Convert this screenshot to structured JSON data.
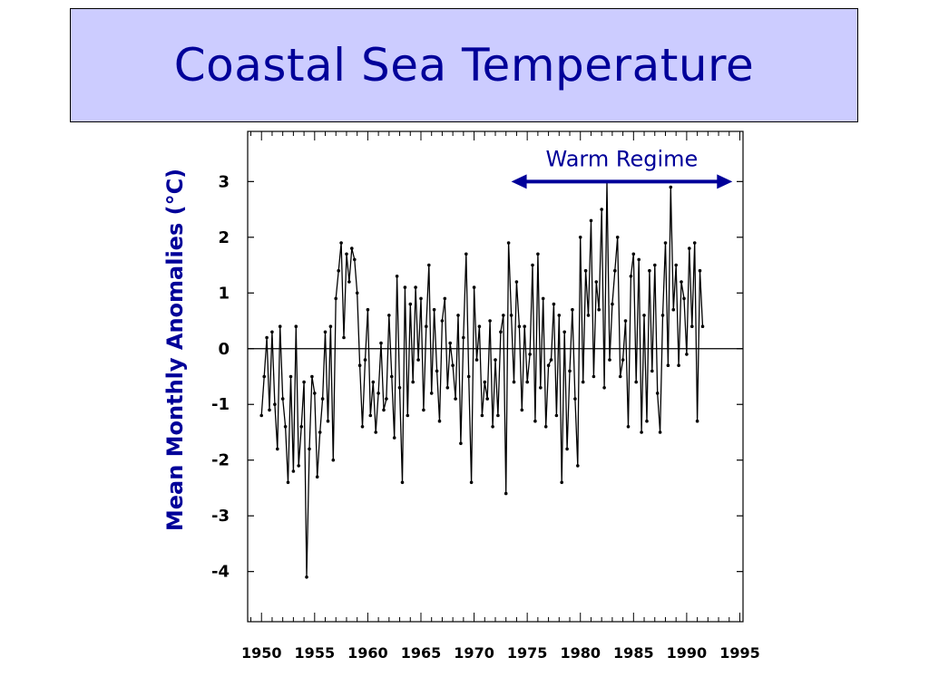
{
  "slide": {
    "title": "Coastal Sea Temperature"
  },
  "colors": {
    "title_background": "#ccccff",
    "title_text": "#000099",
    "series": "#000000",
    "annotation": "#000099"
  },
  "chart_data": {
    "type": "line",
    "title": "Coastal Sea Temperature",
    "xlabel": "",
    "ylabel": "Mean Monthly Anomalies (°C)",
    "xlim": [
      1948.7,
      1995.3
    ],
    "ylim": [
      -4.9,
      3.9
    ],
    "x_ticks": [
      1950,
      1955,
      1960,
      1965,
      1970,
      1975,
      1980,
      1985,
      1990,
      1995
    ],
    "x_tick_labels": [
      "1950",
      "1955",
      "1960",
      "1965",
      "1970",
      "1975",
      "1980",
      "1985",
      "1990",
      "1995"
    ],
    "y_ticks": [
      3,
      2,
      1,
      0,
      -1,
      -2,
      -3,
      -4
    ],
    "y_tick_labels": [
      "3",
      "2",
      "1",
      "0",
      "-1",
      "-2",
      "-3",
      "-4"
    ],
    "grid": false,
    "zero_line": true,
    "markers": true,
    "annotations": [
      {
        "text": "Warm Regime",
        "type": "double-arrow",
        "x_start": 1973.5,
        "x_end": 1994.3,
        "y": 3.0
      }
    ],
    "series": [
      {
        "x_start": 1950.0,
        "x_step_years": 0.25,
        "values": [
          -1.2,
          -0.5,
          0.2,
          -1.1,
          0.3,
          -1.0,
          -1.8,
          0.4,
          -0.9,
          -1.4,
          -2.4,
          -0.5,
          -2.2,
          0.4,
          -2.1,
          -1.4,
          -0.6,
          -4.1,
          -1.8,
          -0.5,
          -0.8,
          -2.3,
          -1.5,
          -0.9,
          0.3,
          -1.3,
          0.4,
          -2.0,
          0.9,
          1.4,
          1.9,
          0.2,
          1.7,
          1.2,
          1.8,
          1.6,
          1.0,
          -0.3,
          -1.4,
          -0.2,
          0.7,
          -1.2,
          -0.6,
          -1.5,
          -0.8,
          0.1,
          -1.1,
          -0.9,
          0.6,
          -0.5,
          -1.6,
          1.3,
          -0.7,
          -2.4,
          1.1,
          -1.2,
          0.8,
          -0.6,
          1.1,
          -0.2,
          0.9,
          -1.1,
          0.4,
          1.5,
          -0.8,
          0.7,
          -0.4,
          -1.3,
          0.5,
          0.9,
          -0.7,
          0.1,
          -0.3,
          -0.9,
          0.6,
          -1.7,
          0.2,
          1.7,
          -0.5,
          -2.4,
          1.1,
          -0.2,
          0.4,
          -1.2,
          -0.6,
          -0.9,
          0.5,
          -1.4,
          -0.2,
          -1.2,
          0.3,
          0.6,
          -2.6,
          1.9,
          0.6,
          -0.6,
          1.2,
          0.4,
          -1.1,
          0.4,
          -0.6,
          -0.1,
          1.5,
          -1.3,
          1.7,
          -0.7,
          0.9,
          -1.4,
          -0.3,
          -0.2,
          0.8,
          -1.2,
          0.6,
          -2.4,
          0.3,
          -1.8,
          -0.4,
          0.7,
          -0.9,
          -2.1,
          2.0,
          -0.6,
          1.4,
          0.6,
          2.3,
          -0.5,
          1.2,
          0.7,
          2.5,
          -0.7,
          3.0,
          -0.2,
          0.8,
          1.4,
          2.0,
          -0.5,
          -0.2,
          0.5,
          -1.4,
          1.3,
          1.7,
          -0.6,
          1.6,
          -1.5,
          0.6,
          -1.3,
          1.4,
          -0.4,
          1.5,
          -0.8,
          -1.5,
          0.6,
          1.9,
          -0.3,
          2.9,
          0.7,
          1.5,
          -0.3,
          1.2,
          0.9,
          -0.1,
          1.8,
          0.4,
          1.9,
          -1.3,
          1.4,
          0.4
        ]
      }
    ]
  }
}
